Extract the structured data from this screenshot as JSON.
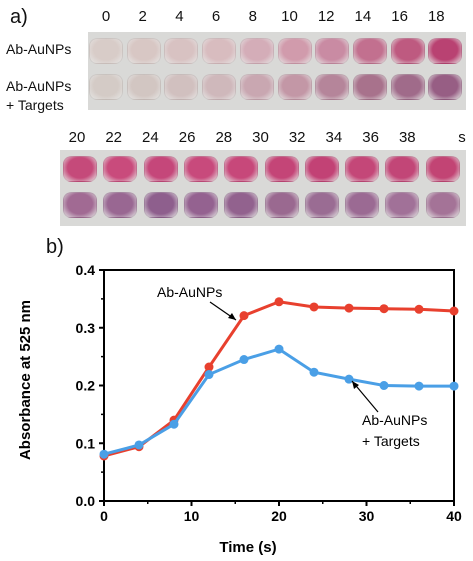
{
  "panel_a": {
    "label": "a)",
    "row1_times": [
      "0",
      "2",
      "4",
      "6",
      "8",
      "10",
      "12",
      "14",
      "16",
      "18"
    ],
    "row2_times": [
      "20",
      "22",
      "24",
      "26",
      "28",
      "30",
      "32",
      "34",
      "36",
      "38"
    ],
    "row2_unit": "s",
    "row_label_1": "Ab-AuNPs",
    "row_label_2a": "Ab-AuNPs",
    "row_label_2b": "+ Targets",
    "well_colors": {
      "row1_top": [
        "#d8ccc8",
        "#d8c7c4",
        "#d8c2c2",
        "#d8bcbf",
        "#d4adb8",
        "#d19bac",
        "#c98ba3",
        "#c2708f",
        "#be5a80",
        "#b94272"
      ],
      "row1_bottom": [
        "#d4cbc6",
        "#d2c6c2",
        "#d1c0bf",
        "#cfb8bb",
        "#c9a7b1",
        "#c397a6",
        "#b5859a",
        "#a8728c",
        "#a06b8a",
        "#975e84"
      ],
      "row2_top": [
        "#c54a7a",
        "#c94b7c",
        "#c5477a",
        "#c84a7c",
        "#c7487a",
        "#c44577",
        "#c24275",
        "#c44778",
        "#c24677",
        "#c24474"
      ],
      "row2_bottom": [
        "#a16a93",
        "#996792",
        "#8e5f8d",
        "#946290",
        "#92628e",
        "#9a6990",
        "#9a6c93",
        "#9b6a93",
        "#a17198",
        "#a47397"
      ]
    }
  },
  "panel_b": {
    "label": "b)"
  },
  "chart_data": {
    "type": "line",
    "xlabel": "Time (s)",
    "ylabel": "Absorbance at 525 nm",
    "xlim": [
      0,
      40
    ],
    "ylim": [
      0.0,
      0.4
    ],
    "x_ticks": [
      "0",
      "10",
      "20",
      "30",
      "40"
    ],
    "y_ticks": [
      "0.0",
      "0.1",
      "0.2",
      "0.3",
      "0.4"
    ],
    "grid": false,
    "series": [
      {
        "name": "Ab-AuNPs",
        "color": "#e8402e",
        "x": [
          0,
          4,
          8,
          12,
          16,
          20,
          24,
          28,
          32,
          36,
          40
        ],
        "y": [
          0.078,
          0.094,
          0.14,
          0.232,
          0.321,
          0.345,
          0.336,
          0.334,
          0.333,
          0.332,
          0.329
        ]
      },
      {
        "name": "Ab-AuNPs + Targets",
        "color": "#4a9fe6",
        "x": [
          0,
          4,
          8,
          12,
          16,
          20,
          24,
          28,
          32,
          36,
          40
        ],
        "y": [
          0.081,
          0.097,
          0.133,
          0.219,
          0.245,
          0.263,
          0.223,
          0.211,
          0.2,
          0.199,
          0.199
        ]
      }
    ],
    "annotations": [
      "Ab-AuNPs",
      "Ab-AuNPs",
      "+ Targets"
    ]
  }
}
